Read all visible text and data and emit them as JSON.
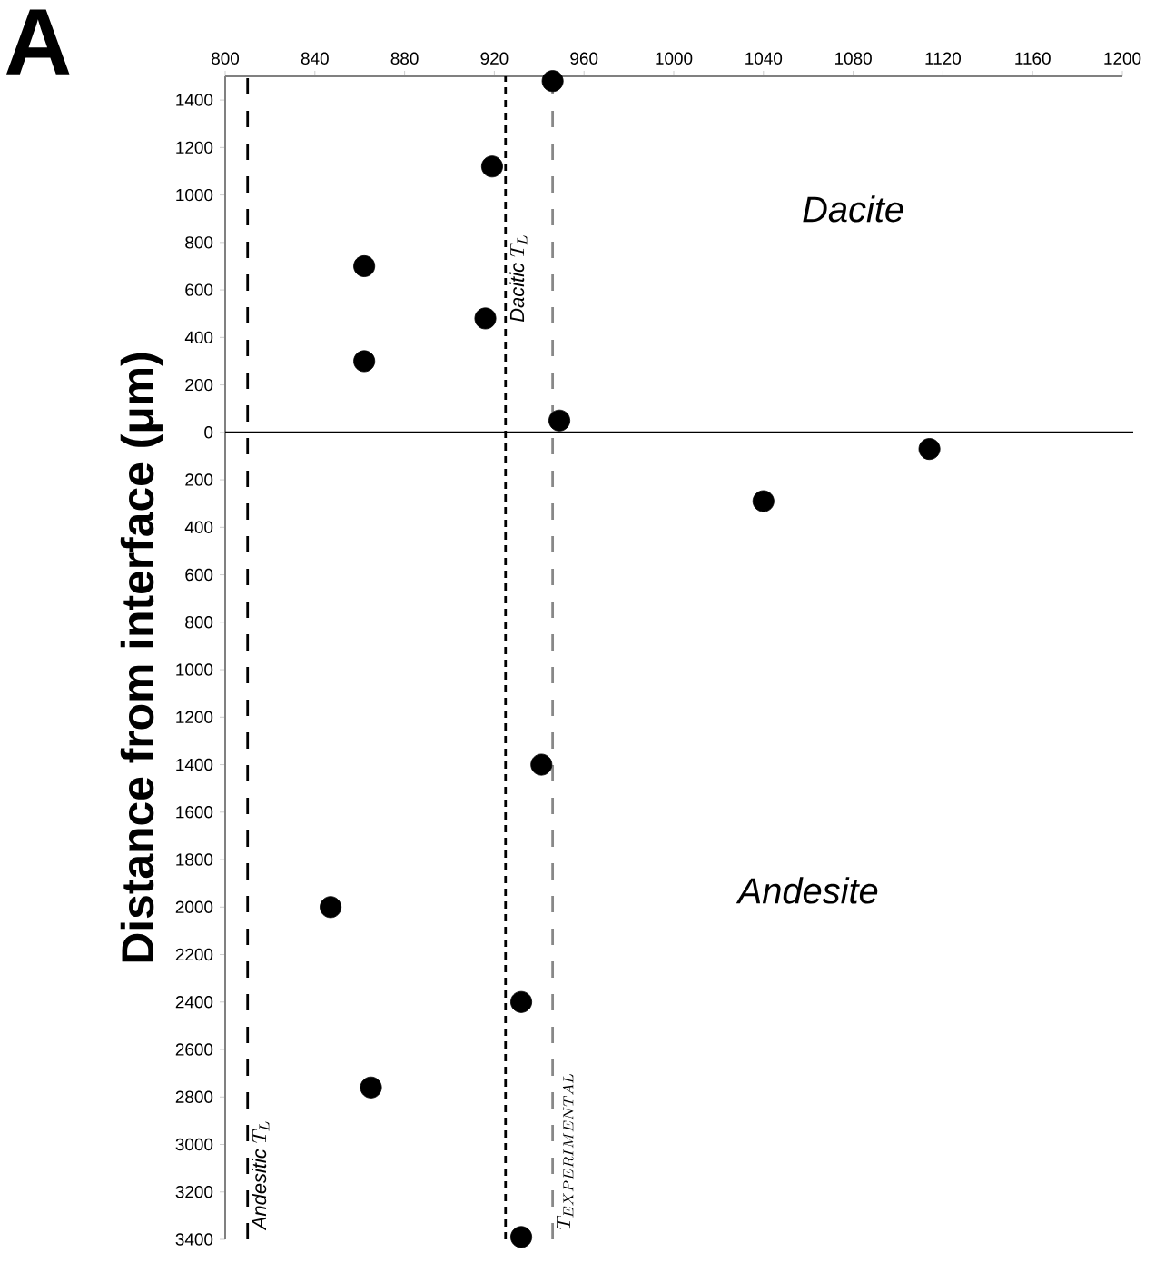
{
  "chart_data": {
    "type": "scatter",
    "title": "A",
    "ylabel": "Distance from interface (μm)",
    "series": [
      {
        "color": "#000000",
        "x": [
          946,
          919,
          862,
          916,
          862,
          949,
          1114,
          1040,
          941,
          847,
          932,
          865,
          932
        ],
        "values": [
          1480,
          1120,
          700,
          480,
          300,
          50,
          -70,
          -290,
          -1400,
          -2000,
          -2400,
          -2760,
          -3390
        ]
      }
    ],
    "marker": "circle",
    "xlim": [
      800,
      1200
    ],
    "xticks": [
      800,
      840,
      880,
      920,
      960,
      1000,
      1040,
      1080,
      1120,
      1160,
      1200
    ],
    "ylim": [
      -3400,
      1500
    ],
    "yticks": [
      1400,
      1200,
      1000,
      800,
      600,
      400,
      200,
      0,
      {
        "value": -200,
        "label": "200"
      },
      {
        "value": -400,
        "label": "400"
      },
      {
        "value": -600,
        "label": "600"
      },
      {
        "value": -800,
        "label": "800"
      },
      {
        "value": -1000,
        "label": "1000"
      },
      {
        "value": -1200,
        "label": "1200"
      },
      {
        "value": -1400,
        "label": "1400"
      },
      {
        "value": -1600,
        "label": "1600"
      },
      {
        "value": -1800,
        "label": "1800"
      },
      {
        "value": -2000,
        "label": "2000"
      },
      {
        "value": -2200,
        "label": "2200"
      },
      {
        "value": -2400,
        "label": "2400"
      },
      {
        "value": -2600,
        "label": "2600"
      },
      {
        "value": -2800,
        "label": "2800"
      },
      {
        "value": -3000,
        "label": "3000"
      },
      {
        "value": -3200,
        "label": "3200"
      },
      {
        "value": -3400,
        "label": "3400"
      }
    ],
    "ref_lines": [
      {
        "axis": "y",
        "value": 0,
        "color": "#000000",
        "line_style": "solid"
      },
      {
        "axis": "x",
        "value": 925,
        "label": "\\textit{Dacitic}\\ T_{L}",
        "color": "#000000",
        "line_style": "dotted"
      },
      {
        "axis": "x",
        "value": 946,
        "label": "T_{EXPERIMENTAL}",
        "color": "#888888",
        "line_style": "dashed"
      },
      {
        "axis": "x",
        "value": 810,
        "label": "\\textit{Andesitic}\\ T_{L}",
        "color": "#000000",
        "line_style": "dashed"
      }
    ],
    "annotations": [
      "Dacite",
      "Andesite"
    ],
    "grid": false
  }
}
